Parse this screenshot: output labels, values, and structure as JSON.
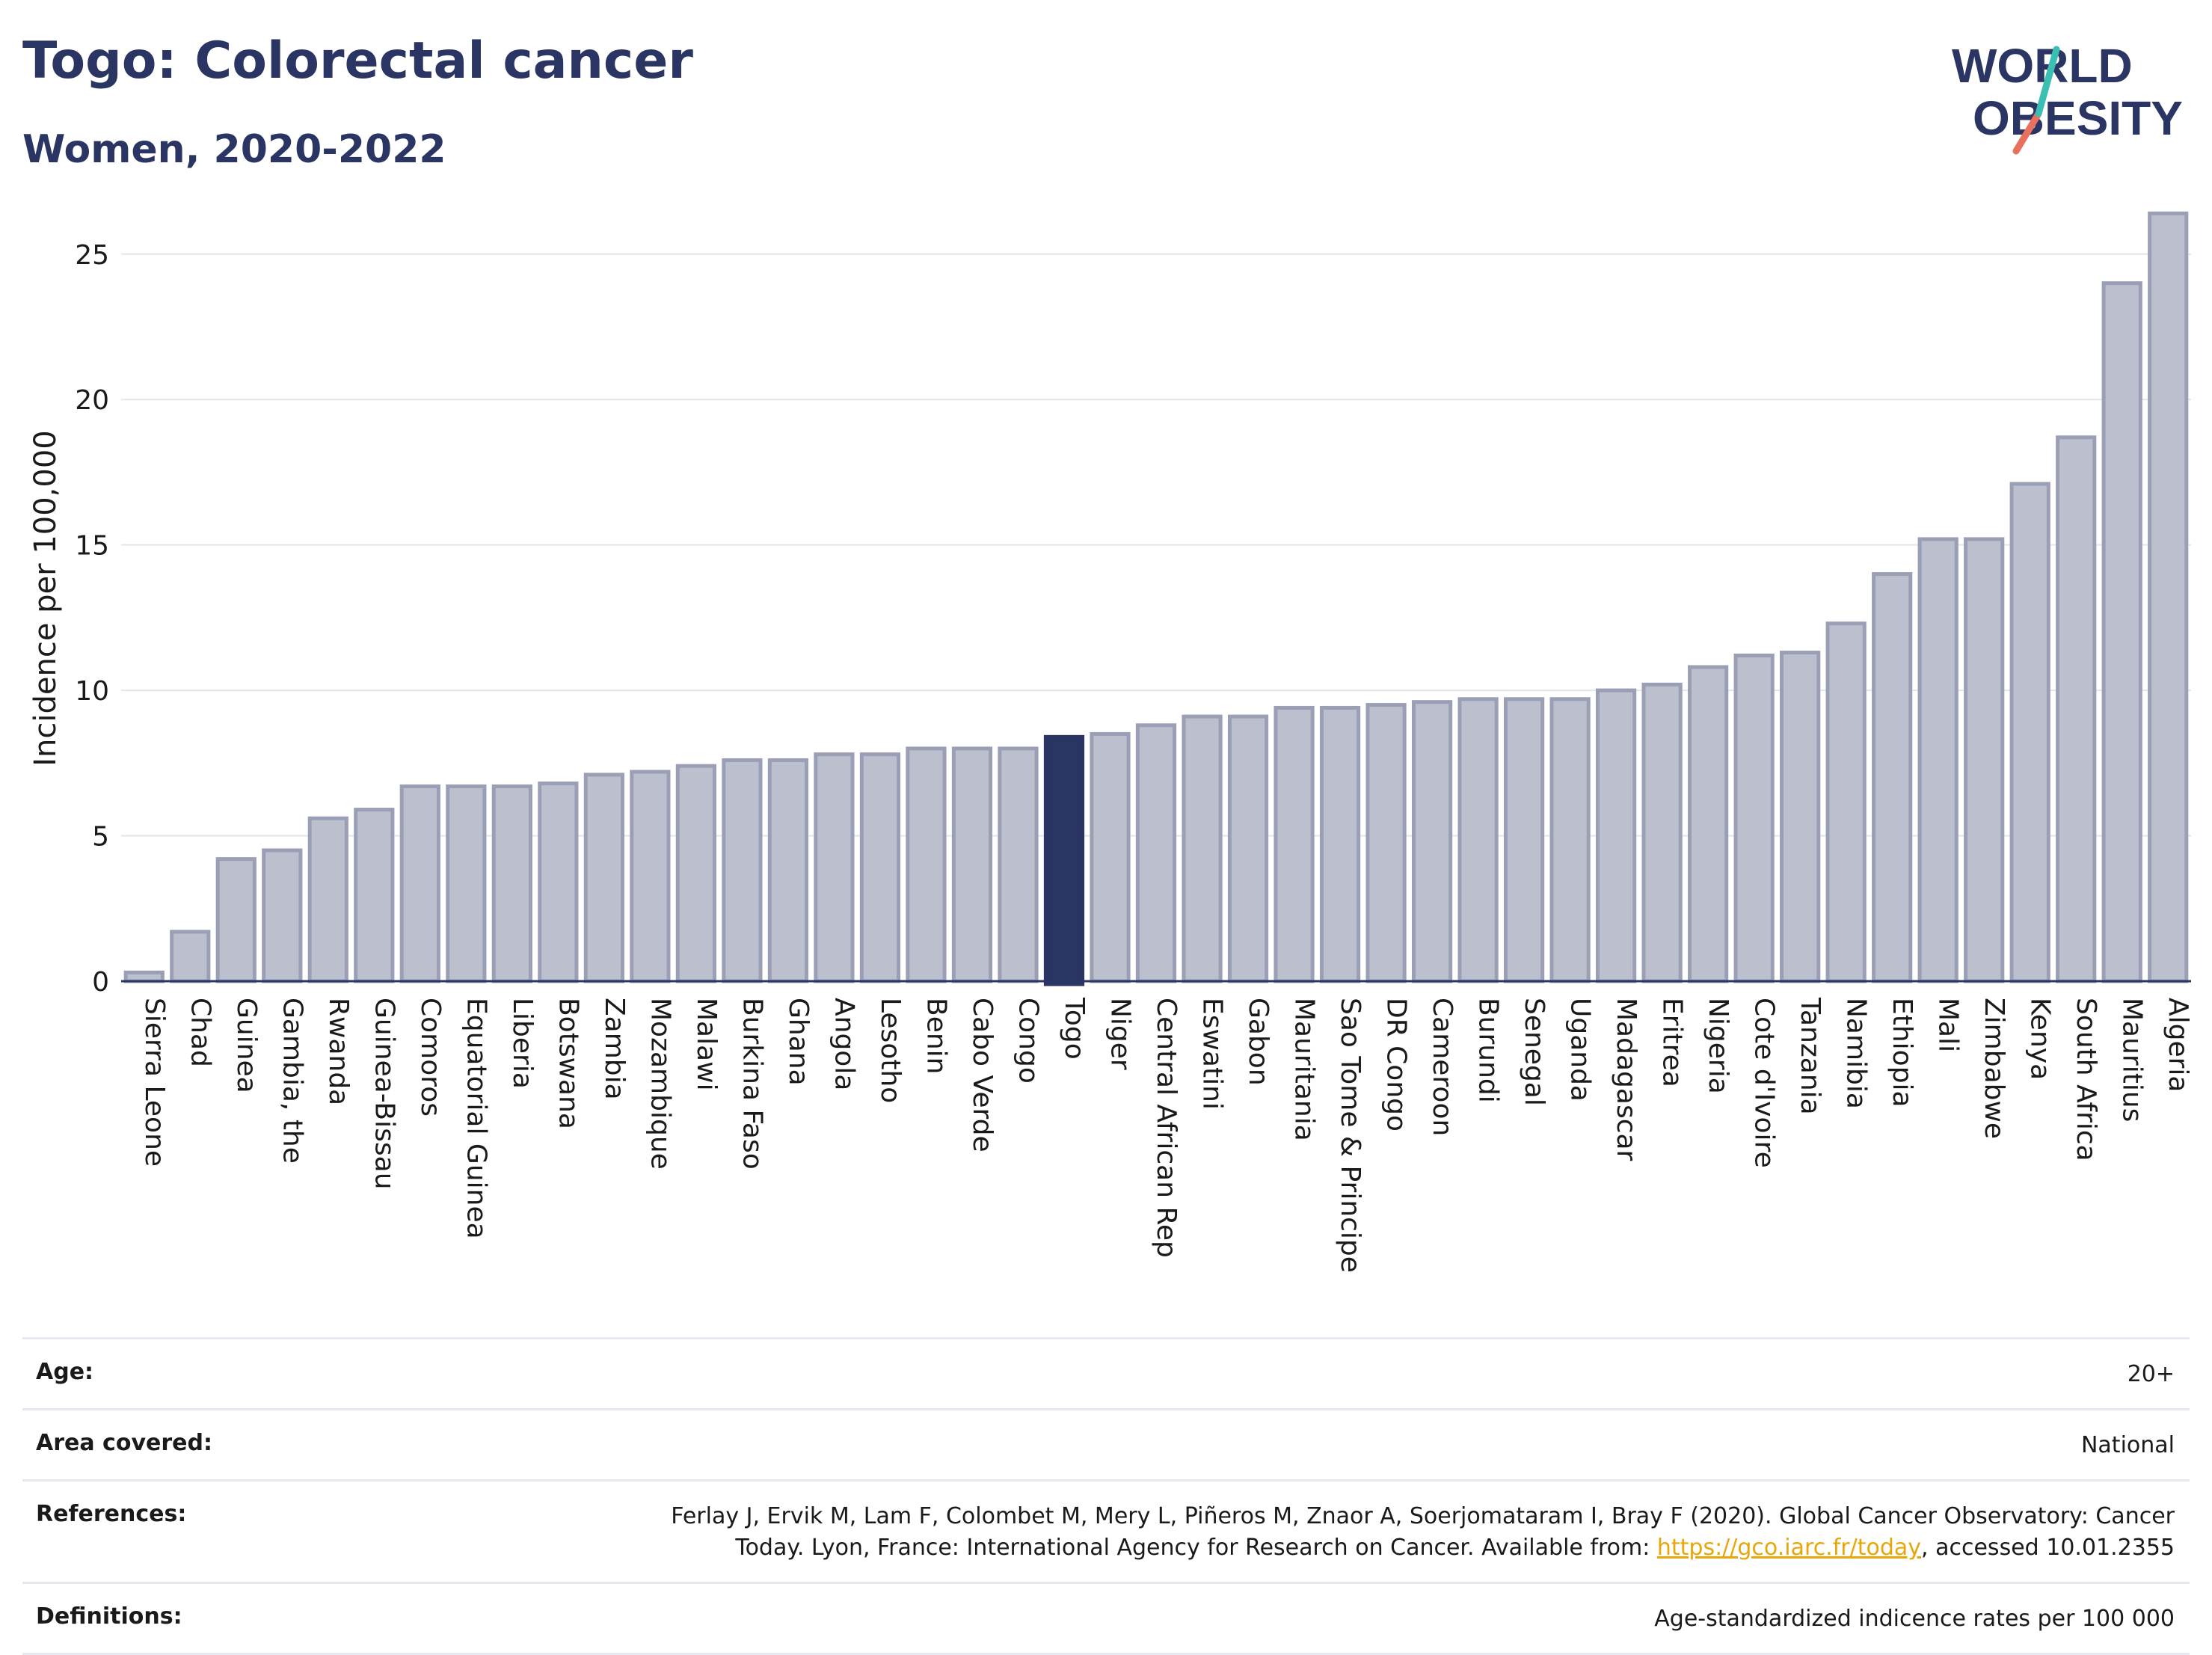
{
  "header": {
    "title": "Togo: Colorectal cancer",
    "subtitle": "Women, 2020-2022",
    "logo_line1": "WORLD",
    "logo_line2": "OBESITY"
  },
  "colors": {
    "highlight": "#2a3563",
    "bar": "#bcc0ce",
    "bar_border": "#9a9fb5",
    "link": "#e7a70b",
    "logo_teal": "#3bbfb3",
    "logo_red": "#e8705f"
  },
  "chart_data": {
    "type": "bar",
    "ylabel": "Incidence per 100,000",
    "xlabel": "",
    "ylim": [
      0,
      27
    ],
    "yticks": [
      0,
      5,
      10,
      15,
      20,
      25
    ],
    "highlight": "Togo",
    "grid": "horizontal",
    "categories": [
      "Sierra Leone",
      "Chad",
      "Guinea",
      "Gambia, the",
      "Rwanda",
      "Guinea-Bissau",
      "Comoros",
      "Equatorial Guinea",
      "Liberia",
      "Botswana",
      "Zambia",
      "Mozambique",
      "Malawi",
      "Burkina Faso",
      "Ghana",
      "Angola",
      "Lesotho",
      "Benin",
      "Cabo Verde",
      "Congo",
      "Togo",
      "Niger",
      "Central African Rep",
      "Eswatini",
      "Gabon",
      "Mauritania",
      "Sao Tome & Principe",
      "DR Congo",
      "Cameroon",
      "Burundi",
      "Senegal",
      "Uganda",
      "Madagascar",
      "Eritrea",
      "Nigeria",
      "Cote d'Ivoire",
      "Tanzania",
      "Namibia",
      "Ethiopia",
      "Mali",
      "Zimbabwe",
      "Kenya",
      "South Africa",
      "Mauritius",
      "Algeria"
    ],
    "values": [
      0.3,
      1.7,
      4.2,
      4.5,
      5.6,
      5.9,
      6.7,
      6.7,
      6.7,
      6.8,
      7.1,
      7.2,
      7.4,
      7.6,
      7.6,
      7.8,
      7.8,
      8.0,
      8.0,
      8.0,
      8.4,
      8.5,
      8.8,
      9.1,
      9.1,
      9.4,
      9.4,
      9.5,
      9.6,
      9.7,
      9.7,
      9.7,
      10.0,
      10.2,
      10.8,
      11.2,
      11.3,
      12.3,
      14.0,
      15.2,
      15.2,
      17.1,
      18.7,
      24.0,
      26.4
    ]
  },
  "footer": {
    "age_label": "Age:",
    "age_value": "20+",
    "area_label": "Area covered:",
    "area_value": "National",
    "references_label": "References:",
    "references_line1": "Ferlay J, Ervik M, Lam F, Colombet M, Mery L, Piñeros M, Znaor A, Soerjomataram I, Bray F (2020). Global Cancer Observatory: Cancer",
    "references_line2_prefix": "Today. Lyon, France: International Agency for Research on Cancer. Available from: ",
    "references_link": "https://gco.iarc.fr/today",
    "references_line2_suffix": ", accessed 10.01.2355",
    "definitions_label": "Definitions:",
    "definitions_value": "Age-standardized indicence rates per 100 000"
  }
}
